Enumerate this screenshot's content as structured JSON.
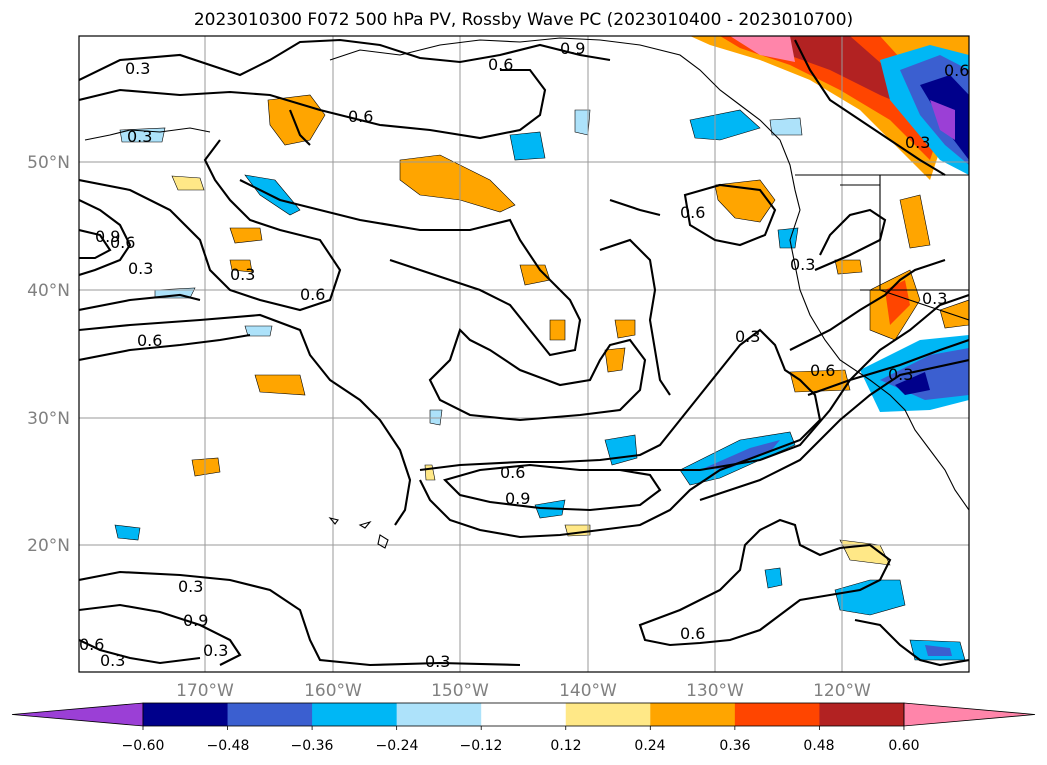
{
  "title": "2023010300 F072 500 hPa PV, Rossby Wave PC (2023010400 - 2023010700)",
  "map": {
    "lat_ticks": [
      {
        "label": "50°N"
      },
      {
        "label": "40°N"
      },
      {
        "label": "30°N"
      },
      {
        "label": "20°N"
      }
    ],
    "lon_ticks": [
      {
        "label": "170°W"
      },
      {
        "label": "160°W"
      },
      {
        "label": "150°W"
      },
      {
        "label": "140°W"
      },
      {
        "label": "130°W"
      },
      {
        "label": "120°W"
      }
    ],
    "contour_labels": [
      "0.3",
      "0.6",
      "0.9",
      "0.6",
      "0.3",
      "0.6",
      "0.9",
      "0.6",
      "0.6",
      "0.3",
      "0.6",
      "0.6",
      "0.3",
      "0.6",
      "0.9",
      "0.3",
      "0.6",
      "0.3",
      "0.3",
      "0.9",
      "0.3",
      "0.3",
      "0.3",
      "0.6",
      "0.3",
      "0.6",
      "0.3",
      "0.3"
    ]
  },
  "colorbar": {
    "colors": [
      "#9B3FD6",
      "#00008B",
      "#3B5FD0",
      "#00B7F5",
      "#ADE2FA",
      "#FFFFFF",
      "#FFE887",
      "#FFA500",
      "#FF4500",
      "#B22222",
      "#FF85AA"
    ],
    "tick_labels": [
      "−0.60",
      "−0.48",
      "−0.36",
      "−0.24",
      "−0.12",
      "0.12",
      "0.24",
      "0.36",
      "0.48",
      "0.60"
    ]
  }
}
